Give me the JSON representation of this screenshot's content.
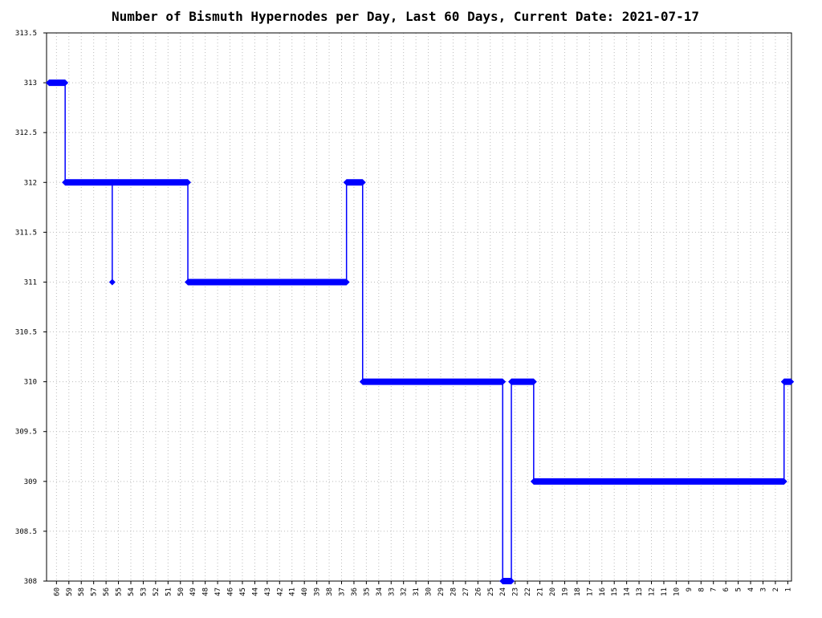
{
  "chart_data": {
    "type": "line",
    "title": "Number of Bismuth Hypernodes per Day, Last 60 Days, Current Date: 2021-07-17",
    "xlim": [
      60.8,
      0.7
    ],
    "xticks": [
      60,
      59,
      58,
      57,
      56,
      55,
      54,
      53,
      52,
      51,
      50,
      49,
      48,
      47,
      46,
      45,
      44,
      43,
      42,
      41,
      40,
      39,
      38,
      37,
      36,
      35,
      34,
      33,
      32,
      31,
      30,
      29,
      28,
      27,
      26,
      25,
      24,
      23,
      22,
      21,
      20,
      19,
      18,
      17,
      16,
      15,
      14,
      13,
      12,
      11,
      10,
      9,
      8,
      7,
      6,
      5,
      4,
      3,
      2,
      1
    ],
    "ylim": [
      308,
      313.5
    ],
    "yticks": [
      308,
      308.5,
      309,
      309.5,
      310,
      310.5,
      311,
      311.5,
      312,
      312.5,
      313,
      313.5
    ],
    "grid": true,
    "series": [
      {
        "color": "#0000ff",
        "x": [
          60.6,
          59.3,
          59.3,
          55.5,
          55.5,
          55.5,
          49.4,
          49.4,
          36.6,
          36.6,
          35.3,
          35.3,
          24.0,
          24.0,
          23.3,
          23.3,
          21.5,
          21.5,
          1.3,
          1.3,
          0.75
        ],
        "values": [
          313,
          313,
          312,
          312,
          311,
          312,
          312,
          311,
          311,
          312,
          312,
          310,
          310,
          308,
          308,
          310,
          310,
          309,
          309,
          310,
          310
        ]
      }
    ]
  }
}
